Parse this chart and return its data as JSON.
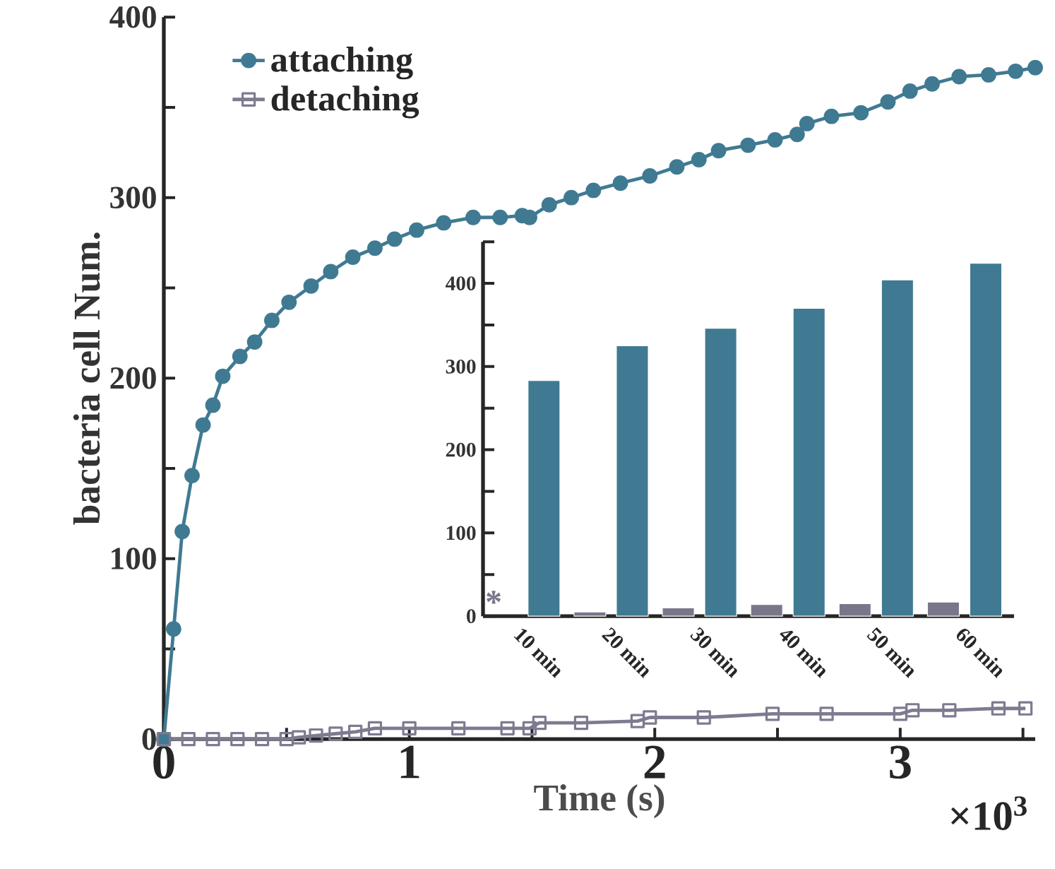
{
  "chart_data": [
    {
      "type": "line",
      "xlabel": "Time (s)",
      "ylabel": "bacteria cell Num.",
      "legend": "top left",
      "xlim": [
        0,
        3.55
      ],
      "ylim": [
        0,
        400
      ],
      "xticks": [
        0,
        {
          "value": 0.5,
          "label": null
        },
        1,
        {
          "value": 1.5,
          "label": null
        },
        2,
        {
          "value": 2.5,
          "label": null
        },
        3,
        {
          "value": 3.5,
          "label": null
        }
      ],
      "yticks": [
        0,
        {
          "value": 50,
          "label": null
        },
        100,
        {
          "value": 150,
          "label": null
        },
        200,
        {
          "value": 250,
          "label": null
        },
        300,
        {
          "value": 350,
          "label": null
        },
        400
      ],
      "annotations": [
        "×10$^{3}$"
      ],
      "series": [
        {
          "name": "attaching",
          "color": "#3f7a92",
          "marker": "circle",
          "x": [
            0,
            0.04,
            0.075,
            0.115,
            0.16,
            0.2,
            0.24,
            0.31,
            0.37,
            0.44,
            0.51,
            0.6,
            0.68,
            0.77,
            0.86,
            0.94,
            1.03,
            1.14,
            1.26,
            1.37,
            1.46,
            1.49,
            1.57,
            1.66,
            1.75,
            1.86,
            1.98,
            2.09,
            2.18,
            2.26,
            2.38,
            2.49,
            2.58,
            2.62,
            2.72,
            2.84,
            2.95,
            3.04,
            3.13,
            3.24,
            3.36,
            3.47,
            3.55
          ],
          "values": [
            0,
            61,
            115,
            146,
            174,
            185,
            201,
            212,
            220,
            232,
            242,
            251,
            259,
            267,
            272,
            277,
            282,
            286,
            289,
            289,
            290,
            289,
            296,
            300,
            304,
            308,
            312,
            317,
            321,
            326,
            329,
            332,
            335,
            341,
            345,
            347,
            353,
            359,
            363,
            367,
            368,
            370,
            372
          ]
        },
        {
          "name": "detaching",
          "color": "#7f7a90",
          "marker": "square",
          "x": [
            0,
            0.1,
            0.2,
            0.3,
            0.4,
            0.5,
            0.55,
            0.62,
            0.7,
            0.78,
            0.86,
            1.0,
            1.2,
            1.4,
            1.49,
            1.53,
            1.7,
            1.93,
            1.98,
            2.2,
            2.48,
            2.7,
            3.0,
            3.05,
            3.2,
            3.4,
            3.51
          ],
          "values": [
            0,
            0,
            0,
            0,
            0,
            0,
            1,
            2,
            3,
            4,
            6,
            6,
            6,
            6,
            6,
            9,
            9,
            10,
            12,
            12,
            14,
            14,
            14,
            16,
            16,
            17,
            17
          ]
        }
      ]
    },
    {
      "type": "bar",
      "categories": [
        "10 min",
        "20 min",
        "30 min",
        "40 min",
        "50 min",
        "60 min"
      ],
      "ylim": [
        0,
        450
      ],
      "yticks": [
        0,
        {
          "value": 50,
          "label": null
        },
        100,
        {
          "value": 150,
          "label": null
        },
        200,
        {
          "value": 250,
          "label": null
        },
        300,
        {
          "value": 350,
          "label": null
        },
        400,
        {
          "value": 450,
          "label": null
        }
      ],
      "annotations": [
        "*"
      ],
      "series": [
        {
          "color": "#7b758a",
          "values": [
            null,
            5,
            10,
            14,
            15,
            17
          ]
        },
        {
          "color": "#3f7a92",
          "values": [
            283,
            325,
            346,
            370,
            404,
            424
          ]
        }
      ]
    }
  ]
}
